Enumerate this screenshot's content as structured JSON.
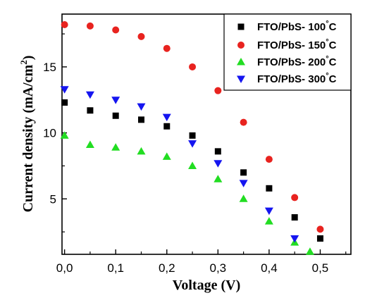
{
  "chart_data": {
    "type": "scatter",
    "xlabel": "Voltage (V)",
    "ylabel": "Current density (mA/cm",
    "ylabel_sup": "2",
    "ylabel_close": ")",
    "xlim": [
      -0.005,
      0.56
    ],
    "ylim": [
      0.8,
      19.0
    ],
    "xticks": [
      0.0,
      0.1,
      0.2,
      0.3,
      0.4,
      0.5
    ],
    "xtick_labels": [
      "0,0",
      "0,1",
      "0,2",
      "0,3",
      "0,4",
      "0,5"
    ],
    "yticks": [
      5,
      10,
      15
    ],
    "ytick_labels": [
      "5",
      "10",
      "15"
    ],
    "grid": false,
    "legend_position": "top-right",
    "series": [
      {
        "name": "FTO/PbS- 100",
        "name_unit": "°C",
        "marker": "square",
        "color": "#000000",
        "x": [
          0.0,
          0.05,
          0.1,
          0.15,
          0.2,
          0.25,
          0.3,
          0.35,
          0.4,
          0.45,
          0.5
        ],
        "y": [
          12.3,
          11.7,
          11.3,
          11.0,
          10.5,
          9.8,
          8.6,
          7.0,
          5.8,
          3.6,
          2.0
        ]
      },
      {
        "name": "FTO/PbS- 150",
        "name_unit": "°C",
        "marker": "circle",
        "color": "#e8231f",
        "x": [
          0.0,
          0.05,
          0.1,
          0.15,
          0.2,
          0.25,
          0.3,
          0.35,
          0.4,
          0.45,
          0.5
        ],
        "y": [
          18.2,
          18.1,
          17.8,
          17.3,
          16.4,
          15.0,
          13.2,
          10.8,
          8.0,
          5.1,
          2.7
        ]
      },
      {
        "name": "FTO/PbS- 200",
        "name_unit": "°C",
        "marker": "triangle-up",
        "color": "#22dd22",
        "x": [
          0.0,
          0.05,
          0.1,
          0.15,
          0.2,
          0.25,
          0.3,
          0.35,
          0.4,
          0.45,
          0.48
        ],
        "y": [
          9.8,
          9.1,
          8.9,
          8.6,
          8.2,
          7.5,
          6.5,
          5.0,
          3.3,
          1.7,
          1.0
        ]
      },
      {
        "name": "FTO/PbS- 300",
        "name_unit": "°C",
        "marker": "triangle-down",
        "color": "#1515f0",
        "x": [
          0.0,
          0.05,
          0.1,
          0.15,
          0.2,
          0.25,
          0.3,
          0.35,
          0.4,
          0.45
        ],
        "y": [
          13.3,
          12.9,
          12.5,
          12.0,
          11.2,
          9.2,
          7.7,
          6.2,
          4.1,
          2.0
        ]
      }
    ]
  }
}
